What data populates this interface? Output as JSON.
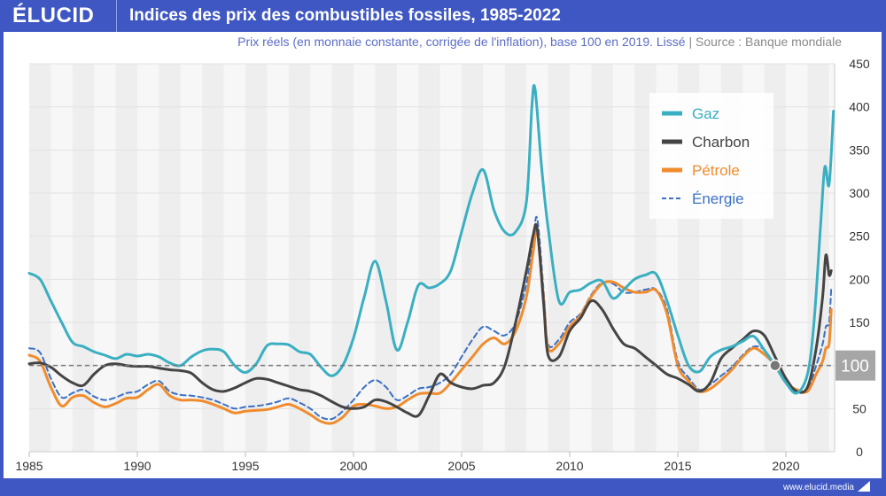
{
  "header": {
    "logo": "ÉLUCID",
    "title": "Indices des prix des combustibles fossiles, 1985-2022"
  },
  "subtitle": {
    "main": "Prix réels (en monnaie constante, corrigée de l'inflation), base 100 en 2019. Lissé",
    "separator": "|",
    "source": "Source : Banque mondiale"
  },
  "footer": {
    "url": "www.elucid.media"
  },
  "colors": {
    "gaz": "#3aafc2",
    "charbon": "#444444",
    "petrole": "#f08c2e",
    "energie": "#3b70c4",
    "baseline": "#777777",
    "brand": "#3f57c3"
  },
  "chart_data": {
    "type": "line",
    "title": "Indices des prix des combustibles fossiles, 1985-2022",
    "subtitle": "Prix réels (en monnaie constante, corrigée de l'inflation), base 100 en 2019. Lissé",
    "xlabel": "",
    "ylabel": "",
    "xlim": [
      1985,
      2022.3
    ],
    "ylim": [
      0,
      450
    ],
    "x_ticks": [
      1985,
      1990,
      1995,
      2000,
      2005,
      2010,
      2015,
      2020
    ],
    "y_ticks": [
      0,
      50,
      100,
      150,
      200,
      250,
      300,
      350,
      400,
      450
    ],
    "y_axis_side": "right",
    "grid": true,
    "legend_position": "top-right",
    "reference_line": {
      "value": 100,
      "label": "100",
      "marker_year": 2019.5
    },
    "series": [
      {
        "name": "Gaz",
        "key": "gaz",
        "dashed": false,
        "x": [
          1985,
          1985.5,
          1986,
          1986.5,
          1987,
          1987.5,
          1988,
          1988.5,
          1989,
          1989.5,
          1990,
          1990.5,
          1991,
          1991.5,
          1992,
          1992.5,
          1993,
          1993.5,
          1994,
          1994.5,
          1995,
          1995.5,
          1996,
          1996.5,
          1997,
          1997.5,
          1998,
          1998.5,
          1999,
          1999.5,
          2000,
          2000.5,
          2001,
          2001.5,
          2002,
          2002.5,
          2003,
          2003.5,
          2004,
          2004.5,
          2005,
          2005.5,
          2006,
          2006.5,
          2007,
          2007.5,
          2008,
          2008.25,
          2008.4,
          2008.7,
          2009,
          2009.5,
          2010,
          2010.5,
          2011,
          2011.5,
          2012,
          2012.5,
          2013,
          2013.5,
          2014,
          2014.5,
          2015,
          2015.5,
          2016,
          2016.5,
          2017,
          2017.5,
          2018,
          2018.5,
          2019,
          2019.5,
          2020,
          2020.5,
          2021,
          2021.3,
          2021.6,
          2021.8,
          2022,
          2022.2
        ],
        "values": [
          207,
          200,
          175,
          150,
          127,
          122,
          116,
          112,
          108,
          113,
          111,
          113,
          110,
          103,
          100,
          110,
          117,
          119,
          116,
          100,
          92,
          102,
          123,
          125,
          124,
          116,
          113,
          98,
          88,
          100,
          132,
          180,
          221,
          175,
          118,
          150,
          193,
          190,
          195,
          210,
          255,
          300,
          327,
          280,
          255,
          255,
          290,
          400,
          420,
          330,
          260,
          175,
          185,
          188,
          196,
          198,
          178,
          188,
          200,
          205,
          206,
          175,
          135,
          100,
          93,
          110,
          118,
          122,
          128,
          134,
          118,
          100,
          80,
          68,
          90,
          150,
          260,
          330,
          310,
          395
        ]
      },
      {
        "name": "Charbon",
        "key": "charbon",
        "dashed": false,
        "x": [
          1985,
          1985.5,
          1986,
          1986.5,
          1987,
          1987.5,
          1988,
          1988.5,
          1989,
          1989.5,
          1990,
          1990.5,
          1991,
          1991.5,
          1992,
          1992.5,
          1993,
          1993.5,
          1994,
          1994.5,
          1995,
          1995.5,
          1996,
          1996.5,
          1997,
          1997.5,
          1998,
          1998.5,
          1999,
          1999.5,
          2000,
          2000.5,
          2001,
          2001.5,
          2002,
          2002.5,
          2003,
          2003.5,
          2004,
          2004.5,
          2005,
          2005.5,
          2006,
          2006.5,
          2007,
          2007.5,
          2008,
          2008.3,
          2008.5,
          2008.8,
          2009,
          2009.5,
          2010,
          2010.5,
          2011,
          2011.5,
          2012,
          2012.5,
          2013,
          2013.5,
          2014,
          2014.5,
          2015,
          2015.5,
          2016,
          2016.5,
          2017,
          2017.5,
          2018,
          2018.5,
          2019,
          2019.5,
          2020,
          2020.5,
          2021,
          2021.4,
          2021.7,
          2021.85,
          2022,
          2022.1
        ],
        "values": [
          102,
          103,
          98,
          88,
          80,
          77,
          90,
          100,
          102,
          100,
          99,
          99,
          97,
          95,
          94,
          91,
          80,
          72,
          70,
          74,
          80,
          85,
          84,
          80,
          76,
          72,
          70,
          65,
          58,
          52,
          50,
          52,
          60,
          58,
          52,
          45,
          42,
          65,
          90,
          80,
          75,
          73,
          77,
          80,
          100,
          150,
          210,
          250,
          258,
          170,
          112,
          110,
          140,
          155,
          175,
          165,
          143,
          125,
          120,
          110,
          100,
          90,
          85,
          78,
          70,
          80,
          108,
          120,
          130,
          140,
          135,
          110,
          85,
          70,
          75,
          120,
          180,
          228,
          205,
          210
        ]
      },
      {
        "name": "Pétrole",
        "key": "petrole",
        "dashed": false,
        "x": [
          1985,
          1985.5,
          1986,
          1986.5,
          1987,
          1987.5,
          1988,
          1988.5,
          1989,
          1989.5,
          1990,
          1990.5,
          1991,
          1991.5,
          1992,
          1992.5,
          1993,
          1993.5,
          1994,
          1994.5,
          1995,
          1995.5,
          1996,
          1996.5,
          1997,
          1997.5,
          1998,
          1998.5,
          1999,
          1999.5,
          2000,
          2000.5,
          2001,
          2001.5,
          2002,
          2002.5,
          2003,
          2003.5,
          2004,
          2004.5,
          2005,
          2005.5,
          2006,
          2006.5,
          2007,
          2007.5,
          2008,
          2008.3,
          2008.5,
          2008.8,
          2009,
          2009.5,
          2010,
          2010.5,
          2011,
          2011.5,
          2012,
          2012.5,
          2013,
          2013.5,
          2014,
          2014.5,
          2015,
          2015.5,
          2016,
          2016.5,
          2017,
          2017.5,
          2018,
          2018.5,
          2019,
          2019.5,
          2020,
          2020.5,
          2021,
          2021.4,
          2021.7,
          2021.85,
          2022,
          2022.1
        ],
        "values": [
          112,
          105,
          75,
          53,
          63,
          65,
          57,
          52,
          56,
          62,
          63,
          72,
          78,
          65,
          60,
          60,
          59,
          55,
          50,
          45,
          47,
          48,
          49,
          52,
          55,
          50,
          43,
          35,
          33,
          40,
          53,
          55,
          53,
          50,
          52,
          60,
          67,
          68,
          68,
          80,
          95,
          110,
          125,
          132,
          125,
          140,
          180,
          230,
          255,
          175,
          120,
          125,
          145,
          158,
          180,
          195,
          197,
          190,
          185,
          185,
          187,
          160,
          100,
          82,
          70,
          73,
          83,
          95,
          110,
          120,
          113,
          100,
          80,
          72,
          70,
          90,
          105,
          120,
          125,
          165
        ]
      },
      {
        "name": "Énergie",
        "key": "energie",
        "dashed": true,
        "x": [
          1985,
          1985.5,
          1986,
          1986.5,
          1987,
          1987.5,
          1988,
          1988.5,
          1989,
          1989.5,
          1990,
          1990.5,
          1991,
          1991.5,
          1992,
          1992.5,
          1993,
          1993.5,
          1994,
          1994.5,
          1995,
          1995.5,
          1996,
          1996.5,
          1997,
          1997.5,
          1998,
          1998.5,
          1999,
          1999.5,
          2000,
          2000.5,
          2001,
          2001.5,
          2002,
          2002.5,
          2003,
          2003.5,
          2004,
          2004.5,
          2005,
          2005.5,
          2006,
          2006.5,
          2007,
          2007.5,
          2008,
          2008.3,
          2008.5,
          2008.8,
          2009,
          2009.5,
          2010,
          2010.5,
          2011,
          2011.5,
          2012,
          2012.5,
          2013,
          2013.5,
          2014,
          2014.5,
          2015,
          2015.5,
          2016,
          2016.5,
          2017,
          2017.5,
          2018,
          2018.5,
          2019,
          2019.5,
          2020,
          2020.5,
          2021,
          2021.4,
          2021.7,
          2021.85,
          2022,
          2022.1
        ],
        "values": [
          120,
          115,
          85,
          63,
          68,
          72,
          64,
          60,
          63,
          68,
          70,
          78,
          82,
          70,
          66,
          65,
          63,
          60,
          55,
          50,
          52,
          53,
          55,
          58,
          62,
          57,
          50,
          40,
          38,
          47,
          60,
          75,
          83,
          75,
          60,
          65,
          73,
          75,
          80,
          90,
          110,
          130,
          145,
          140,
          135,
          150,
          195,
          245,
          270,
          185,
          125,
          130,
          150,
          160,
          182,
          196,
          195,
          185,
          185,
          188,
          188,
          165,
          105,
          86,
          72,
          78,
          88,
          98,
          112,
          122,
          118,
          100,
          80,
          70,
          72,
          100,
          125,
          145,
          150,
          190
        ]
      }
    ]
  }
}
